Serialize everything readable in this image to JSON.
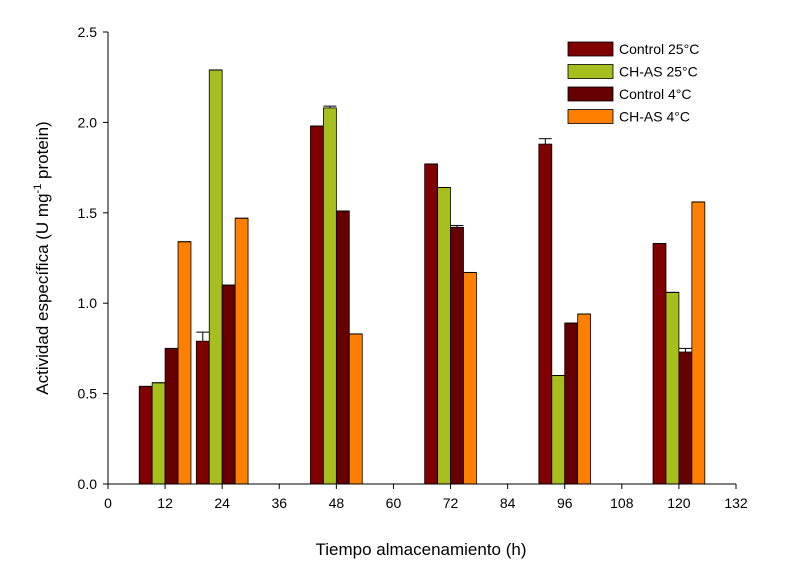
{
  "chart_data": {
    "type": "bar",
    "title": "",
    "xlabel": "Tiempo almacenamiento (h)",
    "ylabel_main": "Actividad específica (U mg",
    "ylabel_sup": "-1",
    "ylabel_tail": " protein)",
    "xlim": [
      0,
      132
    ],
    "ylim": [
      0,
      2.5
    ],
    "xticks": [
      "0",
      "12",
      "24",
      "36",
      "48",
      "60",
      "72",
      "84",
      "96",
      "108",
      "120",
      "132"
    ],
    "yticks": [
      "0.0",
      "0.5",
      "1.0",
      "1.5",
      "2.0",
      "2.5"
    ],
    "x": [
      12,
      24,
      48,
      72,
      96,
      120
    ],
    "legend_position": "top-right",
    "series": [
      {
        "name": "Control 25°C",
        "color": "#800000",
        "values": [
          0.54,
          0.79,
          1.98,
          1.77,
          1.88,
          1.33
        ],
        "errors": [
          0.0,
          0.05,
          0.0,
          0.0,
          0.03,
          0.0
        ]
      },
      {
        "name": "CH-AS 25°C",
        "color": "#A6BF1F",
        "values": [
          0.56,
          2.29,
          2.08,
          1.64,
          0.6,
          1.06
        ],
        "errors": [
          0.0,
          0.0,
          0.01,
          0.0,
          0.0,
          0.0
        ]
      },
      {
        "name": "Control 4°C",
        "color": "#660000",
        "values": [
          0.75,
          1.1,
          1.51,
          1.42,
          0.89,
          0.73
        ],
        "errors": [
          0.0,
          0.0,
          0.0,
          0.01,
          0.0,
          0.02
        ]
      },
      {
        "name": "CH-AS 4°C",
        "color": "#FF8000",
        "values": [
          1.34,
          1.47,
          0.83,
          1.17,
          0.94,
          1.56
        ],
        "errors": [
          0.0,
          0.0,
          0.0,
          0.0,
          0.0,
          0.0
        ]
      }
    ]
  }
}
